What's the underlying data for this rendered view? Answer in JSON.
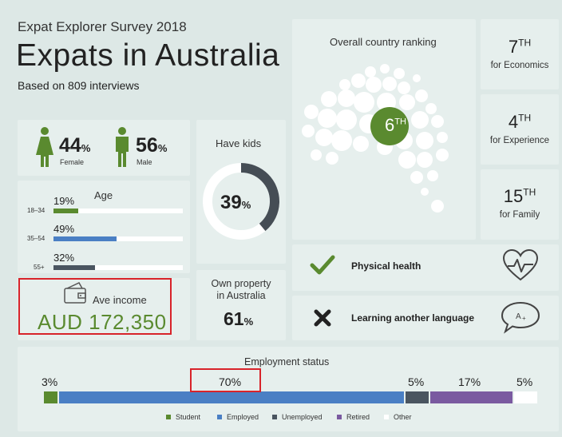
{
  "header": {
    "survey": "Expat Explorer Survey 2018",
    "title": "Expats in Australia",
    "subtitle": "Based on 809 interviews"
  },
  "gender": {
    "female": {
      "value": "44",
      "unit": "%",
      "label": "Female"
    },
    "male": {
      "value": "56",
      "unit": "%",
      "label": "Male"
    }
  },
  "age": {
    "title": "Age",
    "groups": [
      {
        "range": "18–34",
        "pct": "19%",
        "fraction": 0.19,
        "color": "#5a8a2f"
      },
      {
        "range": "35–54",
        "pct": "49%",
        "fraction": 0.49,
        "color": "#4a7fc4"
      },
      {
        "range": "55+",
        "pct": "32%",
        "fraction": 0.32,
        "color": "#4a5560"
      }
    ]
  },
  "income": {
    "label": "Ave income",
    "value": "AUD 172,350"
  },
  "kids": {
    "title": "Have kids",
    "value": "39",
    "unit": "%",
    "fraction": 0.39
  },
  "property": {
    "title_line1": "Own property",
    "title_line2": "in Australia",
    "value": "61",
    "unit": "%"
  },
  "ranking": {
    "title": "Overall country ranking",
    "rank_num": "6",
    "rank_suffix": "TH",
    "items": [
      {
        "num": "7",
        "suffix": "TH",
        "label": "for Economics"
      },
      {
        "num": "4",
        "suffix": "TH",
        "label": "for Experience"
      },
      {
        "num": "15",
        "suffix": "TH",
        "label": "for Family"
      }
    ]
  },
  "features": {
    "health": {
      "label": "Physical health",
      "status_icon": "check-icon",
      "icon": "heart-pulse-icon"
    },
    "language": {
      "label": "Learning another language",
      "status_icon": "cross-icon",
      "icon": "speech-bubble-icon"
    }
  },
  "employment": {
    "title": "Employment status",
    "segments": [
      {
        "pct": "3%",
        "value": 3,
        "name": "Student",
        "color": "#5a8a2f"
      },
      {
        "pct": "70%",
        "value": 70,
        "name": "Employed",
        "color": "#4a7fc4"
      },
      {
        "pct": "5%",
        "value": 5,
        "name": "Unemployed",
        "color": "#4a5560"
      },
      {
        "pct": "17%",
        "value": 17,
        "name": "Retired",
        "color": "#7a5aa0"
      },
      {
        "pct": "5%",
        "value": 5,
        "name": "Other",
        "color": "#ffffff"
      }
    ]
  },
  "colors": {
    "accent_green": "#5a8a2f",
    "highlight_red": "#d8232a"
  }
}
